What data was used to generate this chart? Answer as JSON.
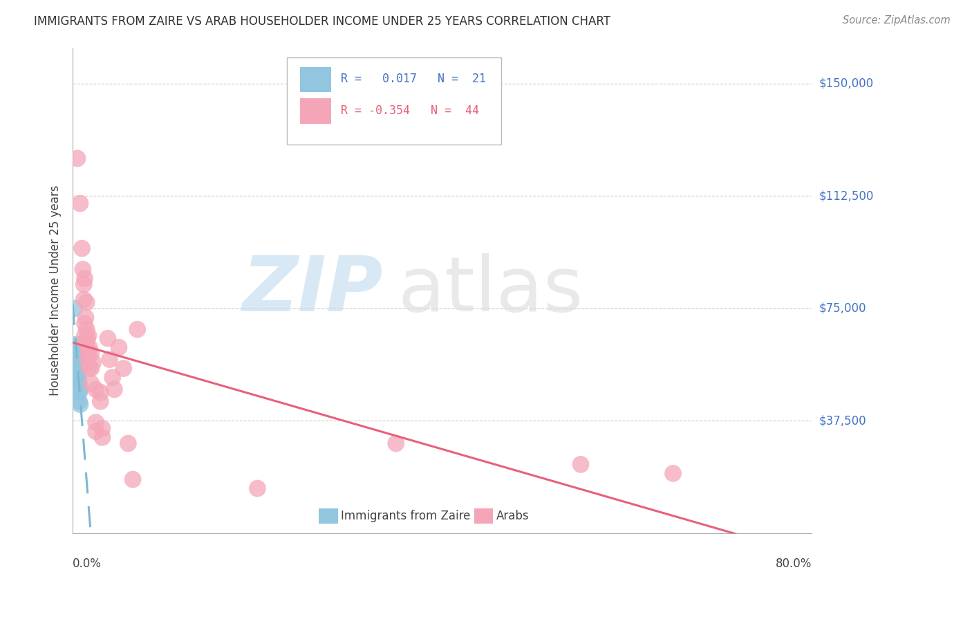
{
  "title": "IMMIGRANTS FROM ZAIRE VS ARAB HOUSEHOLDER INCOME UNDER 25 YEARS CORRELATION CHART",
  "source": "Source: ZipAtlas.com",
  "ylabel": "Householder Income Under 25 years",
  "ytick_labels": [
    "$150,000",
    "$112,500",
    "$75,000",
    "$37,500"
  ],
  "ytick_values": [
    150000,
    112500,
    75000,
    37500
  ],
  "ymin": 0,
  "ymax": 162000,
  "xmin": 0.0,
  "xmax": 0.8,
  "blue_color": "#92C5DE",
  "pink_color": "#F4A6B8",
  "blue_line_color": "#7BB8D4",
  "pink_line_color": "#E8607A",
  "blue_points": [
    [
      0.002,
      75000
    ],
    [
      0.004,
      63000
    ],
    [
      0.004,
      60000
    ],
    [
      0.004,
      57000
    ],
    [
      0.004,
      55000
    ],
    [
      0.005,
      62000
    ],
    [
      0.005,
      58000
    ],
    [
      0.005,
      55000
    ],
    [
      0.005,
      52000
    ],
    [
      0.005,
      50000
    ],
    [
      0.006,
      60000
    ],
    [
      0.006,
      57000
    ],
    [
      0.006,
      55000
    ],
    [
      0.006,
      52000
    ],
    [
      0.006,
      50000
    ],
    [
      0.007,
      55000
    ],
    [
      0.007,
      50000
    ],
    [
      0.007,
      47000
    ],
    [
      0.007,
      44000
    ],
    [
      0.008,
      48000
    ],
    [
      0.008,
      43000
    ]
  ],
  "pink_points": [
    [
      0.005,
      125000
    ],
    [
      0.008,
      110000
    ],
    [
      0.01,
      95000
    ],
    [
      0.011,
      88000
    ],
    [
      0.012,
      83000
    ],
    [
      0.012,
      78000
    ],
    [
      0.013,
      85000
    ],
    [
      0.013,
      70000
    ],
    [
      0.013,
      66000
    ],
    [
      0.014,
      72000
    ],
    [
      0.014,
      64000
    ],
    [
      0.015,
      77000
    ],
    [
      0.015,
      68000
    ],
    [
      0.015,
      63000
    ],
    [
      0.016,
      65000
    ],
    [
      0.016,
      58000
    ],
    [
      0.017,
      66000
    ],
    [
      0.017,
      60000
    ],
    [
      0.018,
      62000
    ],
    [
      0.018,
      55000
    ],
    [
      0.02,
      60000
    ],
    [
      0.02,
      55000
    ],
    [
      0.02,
      50000
    ],
    [
      0.022,
      57000
    ],
    [
      0.025,
      48000
    ],
    [
      0.025,
      37000
    ],
    [
      0.025,
      34000
    ],
    [
      0.03,
      47000
    ],
    [
      0.03,
      44000
    ],
    [
      0.032,
      35000
    ],
    [
      0.032,
      32000
    ],
    [
      0.038,
      65000
    ],
    [
      0.04,
      58000
    ],
    [
      0.043,
      52000
    ],
    [
      0.045,
      48000
    ],
    [
      0.05,
      62000
    ],
    [
      0.055,
      55000
    ],
    [
      0.06,
      30000
    ],
    [
      0.065,
      18000
    ],
    [
      0.07,
      68000
    ],
    [
      0.35,
      30000
    ],
    [
      0.55,
      23000
    ],
    [
      0.65,
      20000
    ],
    [
      0.2,
      15000
    ]
  ]
}
